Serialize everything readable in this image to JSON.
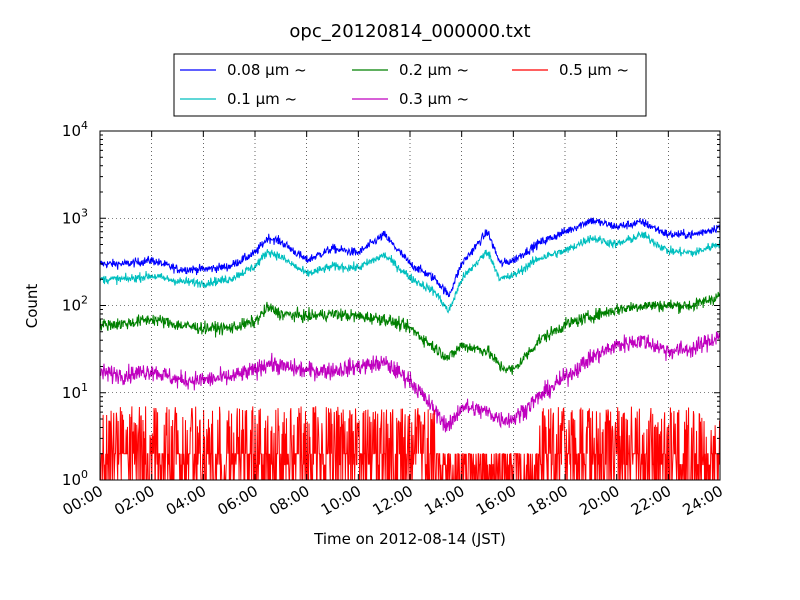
{
  "chart_data": {
    "type": "line",
    "title": "opc_20120814_000000.txt",
    "xlabel": "Time on 2012-08-14 (JST)",
    "ylabel": "Count",
    "xlim": [
      "00:00",
      "24:00"
    ],
    "ylim": [
      1,
      10000
    ],
    "yscale": "log",
    "grid": true,
    "legend_position": "top",
    "x_ticks": [
      "00:00",
      "02:00",
      "04:00",
      "06:00",
      "08:00",
      "10:00",
      "12:00",
      "14:00",
      "16:00",
      "18:00",
      "20:00",
      "22:00",
      "24:00"
    ],
    "y_ticks": [
      {
        "base": "10",
        "exp": "0"
      },
      {
        "base": "10",
        "exp": "1"
      },
      {
        "base": "10",
        "exp": "2"
      },
      {
        "base": "10",
        "exp": "3"
      },
      {
        "base": "10",
        "exp": "4"
      }
    ],
    "x_hours": [
      0,
      1,
      2,
      3,
      4,
      5,
      6,
      6.5,
      7,
      8,
      9,
      10,
      11,
      12,
      13,
      13.5,
      14,
      15,
      15.5,
      16,
      17,
      18,
      19,
      20,
      21,
      22,
      23,
      24
    ],
    "series": [
      {
        "name": "0.08 μm ~",
        "color": "#0000ff",
        "values": [
          300,
          300,
          330,
          260,
          260,
          280,
          400,
          600,
          540,
          330,
          450,
          400,
          650,
          300,
          200,
          130,
          300,
          700,
          300,
          330,
          520,
          700,
          950,
          800,
          900,
          650,
          650,
          800
        ]
      },
      {
        "name": "0.1 μm ~",
        "color": "#00bfbf",
        "values": [
          200,
          200,
          220,
          190,
          180,
          200,
          280,
          420,
          360,
          230,
          280,
          270,
          380,
          210,
          140,
          85,
          200,
          420,
          200,
          220,
          350,
          420,
          600,
          500,
          650,
          420,
          400,
          520
        ]
      },
      {
        "name": "0.2 μm ~",
        "color": "#008000",
        "values": [
          60,
          62,
          70,
          60,
          55,
          55,
          65,
          95,
          80,
          75,
          80,
          75,
          70,
          55,
          32,
          25,
          35,
          30,
          20,
          18,
          40,
          60,
          75,
          90,
          100,
          100,
          100,
          130
        ]
      },
      {
        "name": "0.3 μm ~",
        "color": "#bf00bf",
        "values": [
          17,
          16,
          18,
          14,
          14,
          15,
          18,
          22,
          20,
          18,
          18,
          20,
          22,
          14,
          6,
          4,
          7,
          6,
          5,
          5,
          9,
          15,
          25,
          35,
          40,
          30,
          32,
          45
        ]
      },
      {
        "name": "0.5 μm ~",
        "color": "#ff0000",
        "values": [
          3,
          3,
          3,
          3,
          3,
          3,
          3,
          3,
          3,
          3,
          3,
          3,
          3,
          2,
          1,
          1,
          1.5,
          1.5,
          1,
          1,
          2,
          2,
          3,
          3,
          3,
          3,
          3,
          3
        ]
      }
    ]
  }
}
